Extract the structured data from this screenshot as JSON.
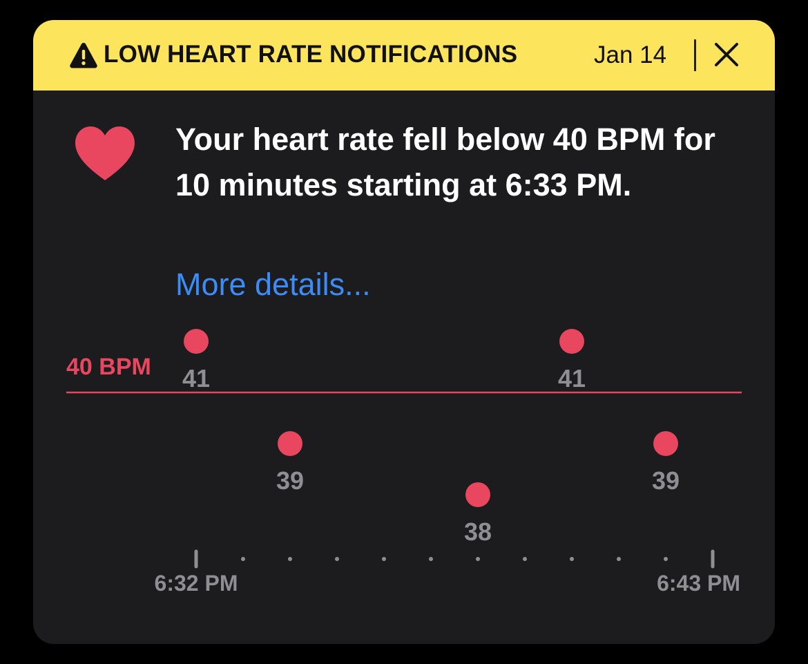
{
  "banner": {
    "warning_icon": "warning-triangle-icon",
    "title": "LOW HEART RATE NOTIFICATIONS",
    "date": "Jan 14",
    "close_icon": "close-icon",
    "background_color": "#fce45c"
  },
  "message": {
    "heart_icon": "heart-icon",
    "text": "Your heart rate fell below 40 BPM for 10 minutes starting at 6:33 PM.",
    "link_label": "More details..."
  },
  "colors": {
    "card_background": "#1c1c1e",
    "accent_red": "#e8475f",
    "link_blue": "#3b8cf6",
    "muted_gray": "#8e8e93"
  },
  "chart_data": {
    "type": "scatter",
    "threshold": {
      "value": 40,
      "label": "40 BPM"
    },
    "x_start_label": "6:32 PM",
    "x_end_label": "6:43 PM",
    "x_ticks": 12,
    "points": [
      {
        "minute": 0,
        "bpm": 41,
        "label": "41"
      },
      {
        "minute": 2,
        "bpm": 39,
        "label": "39"
      },
      {
        "minute": 6,
        "bpm": 38,
        "label": "38"
      },
      {
        "minute": 8,
        "bpm": 41,
        "label": "41"
      },
      {
        "minute": 10,
        "bpm": 39,
        "label": "39"
      }
    ]
  }
}
